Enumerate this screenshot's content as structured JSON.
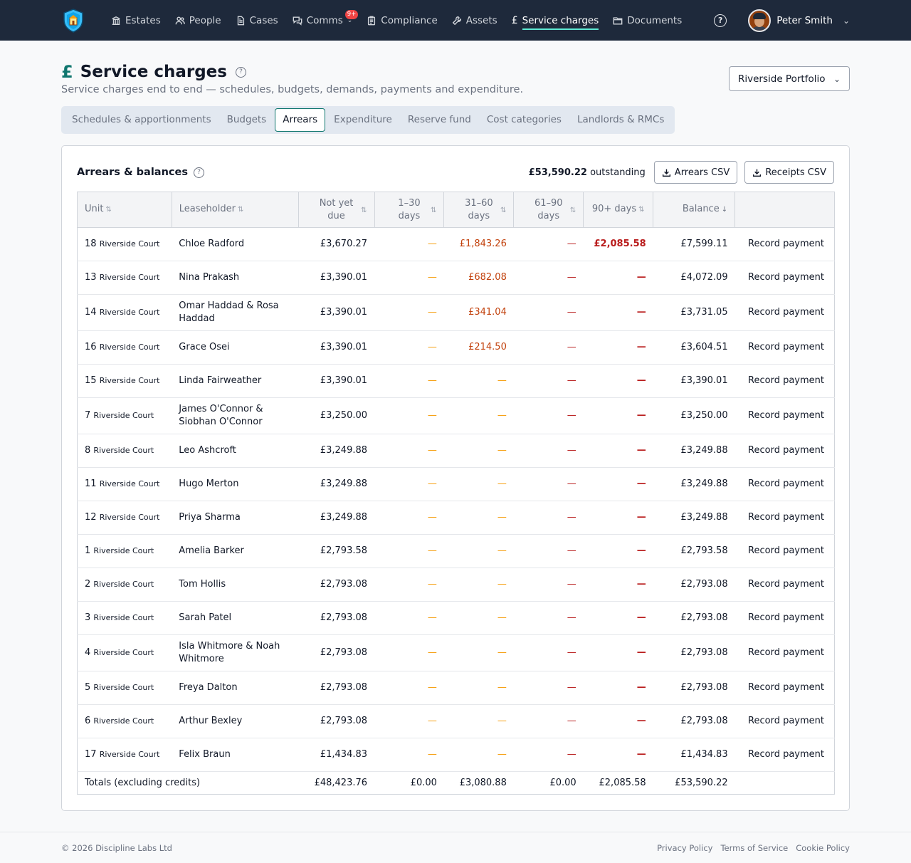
{
  "nav": {
    "items": [
      {
        "label": "Estates",
        "icon": "building-icon"
      },
      {
        "label": "People",
        "icon": "people-icon"
      },
      {
        "label": "Cases",
        "icon": "document-icon"
      },
      {
        "label": "Comms",
        "icon": "chat-icon",
        "badge": "9+"
      },
      {
        "label": "Compliance",
        "icon": "clipboard-icon"
      },
      {
        "label": "Assets",
        "icon": "wrench-icon"
      },
      {
        "label": "Service charges",
        "icon": "pound-icon",
        "active": true
      },
      {
        "label": "Documents",
        "icon": "folder-icon"
      }
    ],
    "user_name": "Peter Smith"
  },
  "header": {
    "title": "Service charges",
    "subtitle": "Service charges end to end — schedules, budgets, demands, payments and expenditure.",
    "portfolio": "Riverside Portfolio"
  },
  "tabs": [
    "Schedules & apportionments",
    "Budgets",
    "Arrears",
    "Expenditure",
    "Reserve fund",
    "Cost categories",
    "Landlords & RMCs"
  ],
  "card": {
    "title": "Arrears & balances",
    "outstanding_amount": "£53,590.22",
    "outstanding_label": "outstanding",
    "btn_arrears": "Arrears CSV",
    "btn_receipts": "Receipts CSV"
  },
  "table": {
    "headers": {
      "unit": "Unit",
      "leaseholder": "Leaseholder",
      "not_yet_1": "Not yet",
      "not_yet_2": "due",
      "d1_1": "1–30",
      "d1_2": "days",
      "d2_1": "31–60",
      "d2_2": "days",
      "d3_1": "61–90",
      "d3_2": "days",
      "d4": "90+ days",
      "balance": "Balance"
    },
    "rows": [
      {
        "unit_num": "18",
        "unit_court": "Riverside Court",
        "name": "Chloe Radford",
        "not_yet": "£3,670.27",
        "d1": "—",
        "d2": "£1,843.26",
        "d3": "—",
        "d4": "£2,085.58",
        "balance": "£7,599.11",
        "action": "Record payment"
      },
      {
        "unit_num": "13",
        "unit_court": "Riverside Court",
        "name": "Nina Prakash",
        "not_yet": "£3,390.01",
        "d1": "—",
        "d2": "£682.08",
        "d3": "—",
        "d4": "—",
        "balance": "£4,072.09",
        "action": "Record payment"
      },
      {
        "unit_num": "14",
        "unit_court": "Riverside Court",
        "name": "Omar Haddad & Rosa Haddad",
        "not_yet": "£3,390.01",
        "d1": "—",
        "d2": "£341.04",
        "d3": "—",
        "d4": "—",
        "balance": "£3,731.05",
        "action": "Record payment"
      },
      {
        "unit_num": "16",
        "unit_court": "Riverside Court",
        "name": "Grace Osei",
        "not_yet": "£3,390.01",
        "d1": "—",
        "d2": "£214.50",
        "d3": "—",
        "d4": "—",
        "balance": "£3,604.51",
        "action": "Record payment"
      },
      {
        "unit_num": "15",
        "unit_court": "Riverside Court",
        "name": "Linda Fairweather",
        "not_yet": "£3,390.01",
        "d1": "—",
        "d2": "—",
        "d3": "—",
        "d4": "—",
        "balance": "£3,390.01",
        "action": "Record payment"
      },
      {
        "unit_num": "7",
        "unit_court": "Riverside Court",
        "name": "James O'Connor & Siobhan O'Connor",
        "not_yet": "£3,250.00",
        "d1": "—",
        "d2": "—",
        "d3": "—",
        "d4": "—",
        "balance": "£3,250.00",
        "action": "Record payment"
      },
      {
        "unit_num": "8",
        "unit_court": "Riverside Court",
        "name": "Leo Ashcroft",
        "not_yet": "£3,249.88",
        "d1": "—",
        "d2": "—",
        "d3": "—",
        "d4": "—",
        "balance": "£3,249.88",
        "action": "Record payment"
      },
      {
        "unit_num": "11",
        "unit_court": "Riverside Court",
        "name": "Hugo Merton",
        "not_yet": "£3,249.88",
        "d1": "—",
        "d2": "—",
        "d3": "—",
        "d4": "—",
        "balance": "£3,249.88",
        "action": "Record payment"
      },
      {
        "unit_num": "12",
        "unit_court": "Riverside Court",
        "name": "Priya Sharma",
        "not_yet": "£3,249.88",
        "d1": "—",
        "d2": "—",
        "d3": "—",
        "d4": "—",
        "balance": "£3,249.88",
        "action": "Record payment"
      },
      {
        "unit_num": "1",
        "unit_court": "Riverside Court",
        "name": "Amelia Barker",
        "not_yet": "£2,793.58",
        "d1": "—",
        "d2": "—",
        "d3": "—",
        "d4": "—",
        "balance": "£2,793.58",
        "action": "Record payment"
      },
      {
        "unit_num": "2",
        "unit_court": "Riverside Court",
        "name": "Tom Hollis",
        "not_yet": "£2,793.08",
        "d1": "—",
        "d2": "—",
        "d3": "—",
        "d4": "—",
        "balance": "£2,793.08",
        "action": "Record payment"
      },
      {
        "unit_num": "3",
        "unit_court": "Riverside Court",
        "name": "Sarah Patel",
        "not_yet": "£2,793.08",
        "d1": "—",
        "d2": "—",
        "d3": "—",
        "d4": "—",
        "balance": "£2,793.08",
        "action": "Record payment"
      },
      {
        "unit_num": "4",
        "unit_court": "Riverside Court",
        "name": "Isla Whitmore & Noah Whitmore",
        "not_yet": "£2,793.08",
        "d1": "—",
        "d2": "—",
        "d3": "—",
        "d4": "—",
        "balance": "£2,793.08",
        "action": "Record payment"
      },
      {
        "unit_num": "5",
        "unit_court": "Riverside Court",
        "name": "Freya Dalton",
        "not_yet": "£2,793.08",
        "d1": "—",
        "d2": "—",
        "d3": "—",
        "d4": "—",
        "balance": "£2,793.08",
        "action": "Record payment"
      },
      {
        "unit_num": "6",
        "unit_court": "Riverside Court",
        "name": "Arthur Bexley",
        "not_yet": "£2,793.08",
        "d1": "—",
        "d2": "—",
        "d3": "—",
        "d4": "—",
        "balance": "£2,793.08",
        "action": "Record payment"
      },
      {
        "unit_num": "17",
        "unit_court": "Riverside Court",
        "name": "Felix Braun",
        "not_yet": "£1,434.83",
        "d1": "—",
        "d2": "—",
        "d3": "—",
        "d4": "—",
        "balance": "£1,434.83",
        "action": "Record payment"
      }
    ],
    "totals": {
      "label": "Totals (excluding credits)",
      "not_yet": "£48,423.76",
      "d1": "£0.00",
      "d2": "£3,080.88",
      "d3": "£0.00",
      "d4": "£2,085.58",
      "balance": "£53,590.22"
    }
  },
  "footer": {
    "copyright": "© 2026 Discipline Labs Ltd",
    "links": [
      "Privacy Policy",
      "Terms of Service",
      "Cookie Policy"
    ]
  },
  "colors": {
    "nav_bg": "#1e293b",
    "accent": "#0f766e",
    "warn": "#c2410c",
    "danger": "#b91c1c"
  }
}
